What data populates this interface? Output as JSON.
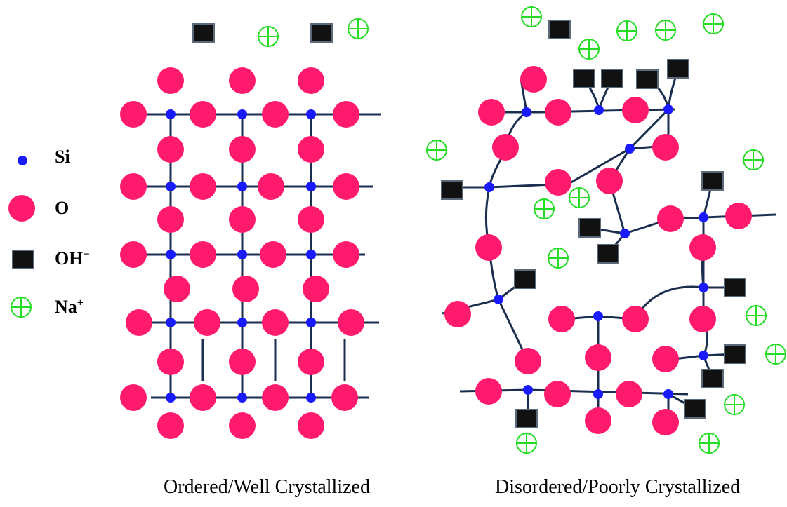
{
  "legend": {
    "si": "Si",
    "o": "O",
    "oh_base": "OH",
    "oh_sup": "−",
    "na_base": "Na",
    "na_sup": "+"
  },
  "captions": {
    "left": "Ordered/Well Crystallized",
    "right": "Disordered/Poorly Crystallized"
  },
  "colors": {
    "si": "#1a1aff",
    "o": "#ff1a6e",
    "oh": "#111111",
    "na": "#22dd22",
    "bond": "#1b2e4f"
  },
  "icons": {
    "si": "blue-dot-icon",
    "o": "pink-circle-icon",
    "oh": "black-square-icon",
    "na": "circled-plus-icon"
  }
}
